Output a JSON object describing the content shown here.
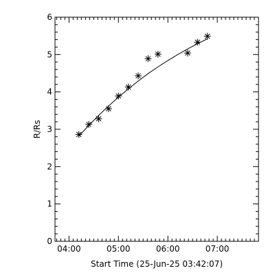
{
  "chart_data": {
    "type": "scatter",
    "title": "",
    "xlabel": "Start Time (25-Jun-25 03:42:07)",
    "ylabel": "R/Rs",
    "xlim": [
      "03:43",
      "07:50"
    ],
    "ylim": [
      0,
      6
    ],
    "x_ticks": [
      "04:00",
      "05:00",
      "06:00",
      "07:00"
    ],
    "y_ticks": [
      "0",
      "1",
      "2",
      "3",
      "4",
      "5",
      "6"
    ],
    "grid": false,
    "legend": "none",
    "marker": "asterisk",
    "series": [
      {
        "x": [
          "04:12",
          "04:24",
          "04:36",
          "04:48",
          "05:00",
          "05:12",
          "05:24",
          "05:36",
          "05:48",
          "06:24",
          "06:36",
          "06:48"
        ],
        "y": [
          2.86,
          3.13,
          3.28,
          3.55,
          3.89,
          4.13,
          4.43,
          4.89,
          5.01,
          5.04,
          5.33,
          5.49
        ]
      }
    ],
    "fit_line": {
      "x": [
        "04:12",
        "04:24",
        "04:36",
        "04:48",
        "05:00",
        "05:12",
        "05:24",
        "05:36",
        "05:48",
        "06:00",
        "06:12",
        "06:24",
        "06:36",
        "06:48"
      ],
      "y": [
        2.82,
        3.1,
        3.37,
        3.62,
        3.86,
        4.08,
        4.29,
        4.49,
        4.67,
        4.84,
        5.0,
        5.15,
        5.29,
        5.42
      ]
    },
    "colors": {
      "foreground": "#000000",
      "background": "#ffffff"
    }
  }
}
